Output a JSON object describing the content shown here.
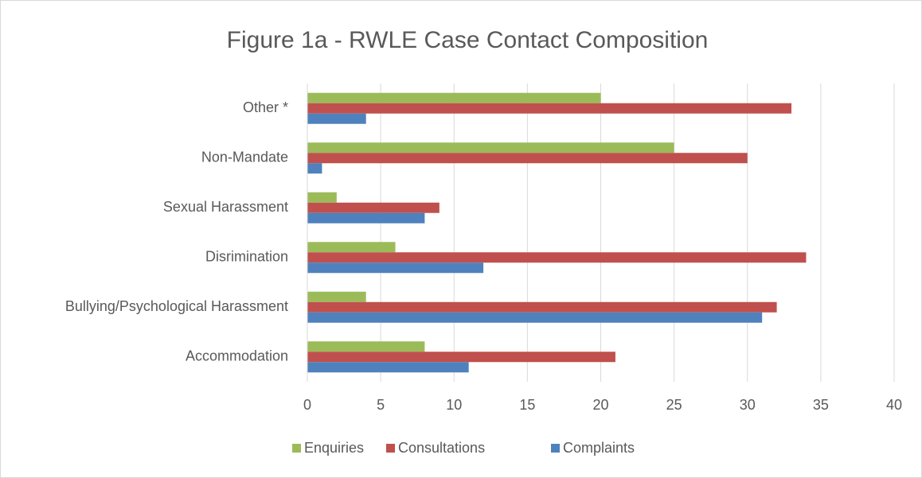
{
  "chart_data": {
    "type": "bar",
    "orientation": "horizontal",
    "title": "Figure 1a - RWLE Case Contact Composition",
    "categories": [
      "Accommodation",
      "Bullying/Psychological Harassment",
      "Disrimination",
      "Sexual Harassment",
      "Non-Mandate",
      "Other *"
    ],
    "series": [
      {
        "name": "Enquiries",
        "color": "#9bbb59",
        "values": [
          8,
          4,
          6,
          2,
          25,
          20
        ]
      },
      {
        "name": "Consultations",
        "color": "#c0504d",
        "values": [
          21,
          32,
          34,
          9,
          30,
          33
        ]
      },
      {
        "name": "Complaints",
        "color": "#4f81bd",
        "values": [
          11,
          31,
          12,
          8,
          1,
          4
        ]
      }
    ],
    "xlim": [
      0,
      40
    ],
    "xticks": [
      0,
      5,
      10,
      15,
      20,
      25,
      30,
      35,
      40
    ],
    "grid": true,
    "legend": "bottom"
  }
}
